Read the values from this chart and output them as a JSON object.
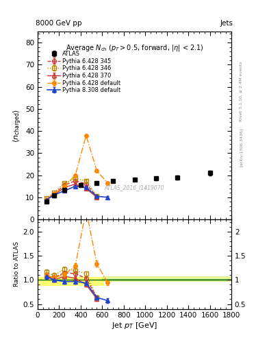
{
  "title_top_left": "8000 GeV pp",
  "title_top_right": "Jets",
  "plot_label": "ATLAS_2016_I1419070",
  "rivet_label": "Rivet 3.1.10, ≥ 2.4M events",
  "arxiv_label": "[arXiv:1306.3436]",
  "ylabel_main": "⟨ n_charged ⟩",
  "ylabel_ratio": "Ratio to ATLAS",
  "xlabel": "Jet p_T [GeV]",
  "xlim": [
    0,
    1800
  ],
  "ylim_main": [
    0,
    85
  ],
  "ylim_ratio": [
    0.4,
    2.25
  ],
  "yticks_main": [
    0,
    10,
    20,
    30,
    40,
    50,
    60,
    70,
    80
  ],
  "yticks_ratio": [
    0.5,
    1.0,
    1.5,
    2.0
  ],
  "atlas_x": [
    80,
    150,
    250,
    400,
    550,
    700,
    900,
    1100,
    1300,
    1600
  ],
  "atlas_y": [
    8.2,
    11.0,
    13.5,
    15.5,
    16.5,
    17.5,
    18.0,
    18.5,
    19.0,
    21.0
  ],
  "atlas_yerr": [
    0.3,
    0.4,
    0.4,
    0.5,
    0.6,
    0.6,
    0.7,
    0.8,
    0.9,
    1.2
  ],
  "p6_345_x": [
    80,
    150,
    250,
    350,
    450,
    550
  ],
  "p6_345_y": [
    9.0,
    11.5,
    15.5,
    17.5,
    16.0,
    10.5
  ],
  "p6_345_yerr": [
    0.3,
    0.3,
    0.4,
    0.5,
    0.5,
    0.6
  ],
  "p6_345_color": "#cc3333",
  "p6_345_linestyle": "--",
  "p6_345_marker": "o",
  "p6_346_x": [
    80,
    150,
    250,
    350,
    450,
    550
  ],
  "p6_346_y": [
    9.5,
    12.0,
    16.5,
    18.5,
    17.5,
    10.5
  ],
  "p6_346_yerr": [
    0.3,
    0.3,
    0.4,
    0.5,
    0.5,
    0.6
  ],
  "p6_346_color": "#bb8800",
  "p6_346_linestyle": ":",
  "p6_346_marker": "s",
  "p6_370_x": [
    80,
    150,
    250,
    350,
    450,
    550
  ],
  "p6_370_y": [
    9.0,
    11.0,
    14.5,
    16.0,
    14.0,
    10.0
  ],
  "p6_370_yerr": [
    0.3,
    0.3,
    0.4,
    0.5,
    0.5,
    0.6
  ],
  "p6_370_color": "#cc3333",
  "p6_370_linestyle": "-",
  "p6_370_marker": "^",
  "p6_def_x": [
    80,
    150,
    250,
    350,
    450,
    550,
    650
  ],
  "p6_def_y": [
    9.0,
    11.5,
    15.0,
    20.0,
    38.0,
    22.0,
    16.5
  ],
  "p6_def_yerr": [
    0.3,
    0.3,
    0.4,
    0.5,
    0.5,
    0.6,
    0.7
  ],
  "p6_def_color": "#ff8800",
  "p6_def_linestyle": "-.",
  "p6_def_marker": "o",
  "p8_def_x": [
    80,
    150,
    250,
    350,
    450,
    550,
    650
  ],
  "p8_def_y": [
    8.8,
    11.0,
    13.0,
    15.0,
    14.5,
    10.5,
    10.0
  ],
  "p8_def_yerr": [
    0.3,
    0.3,
    0.4,
    0.5,
    0.5,
    0.6,
    0.7
  ],
  "p8_def_color": "#2244cc",
  "p8_def_linestyle": "-",
  "p8_def_marker": "^"
}
